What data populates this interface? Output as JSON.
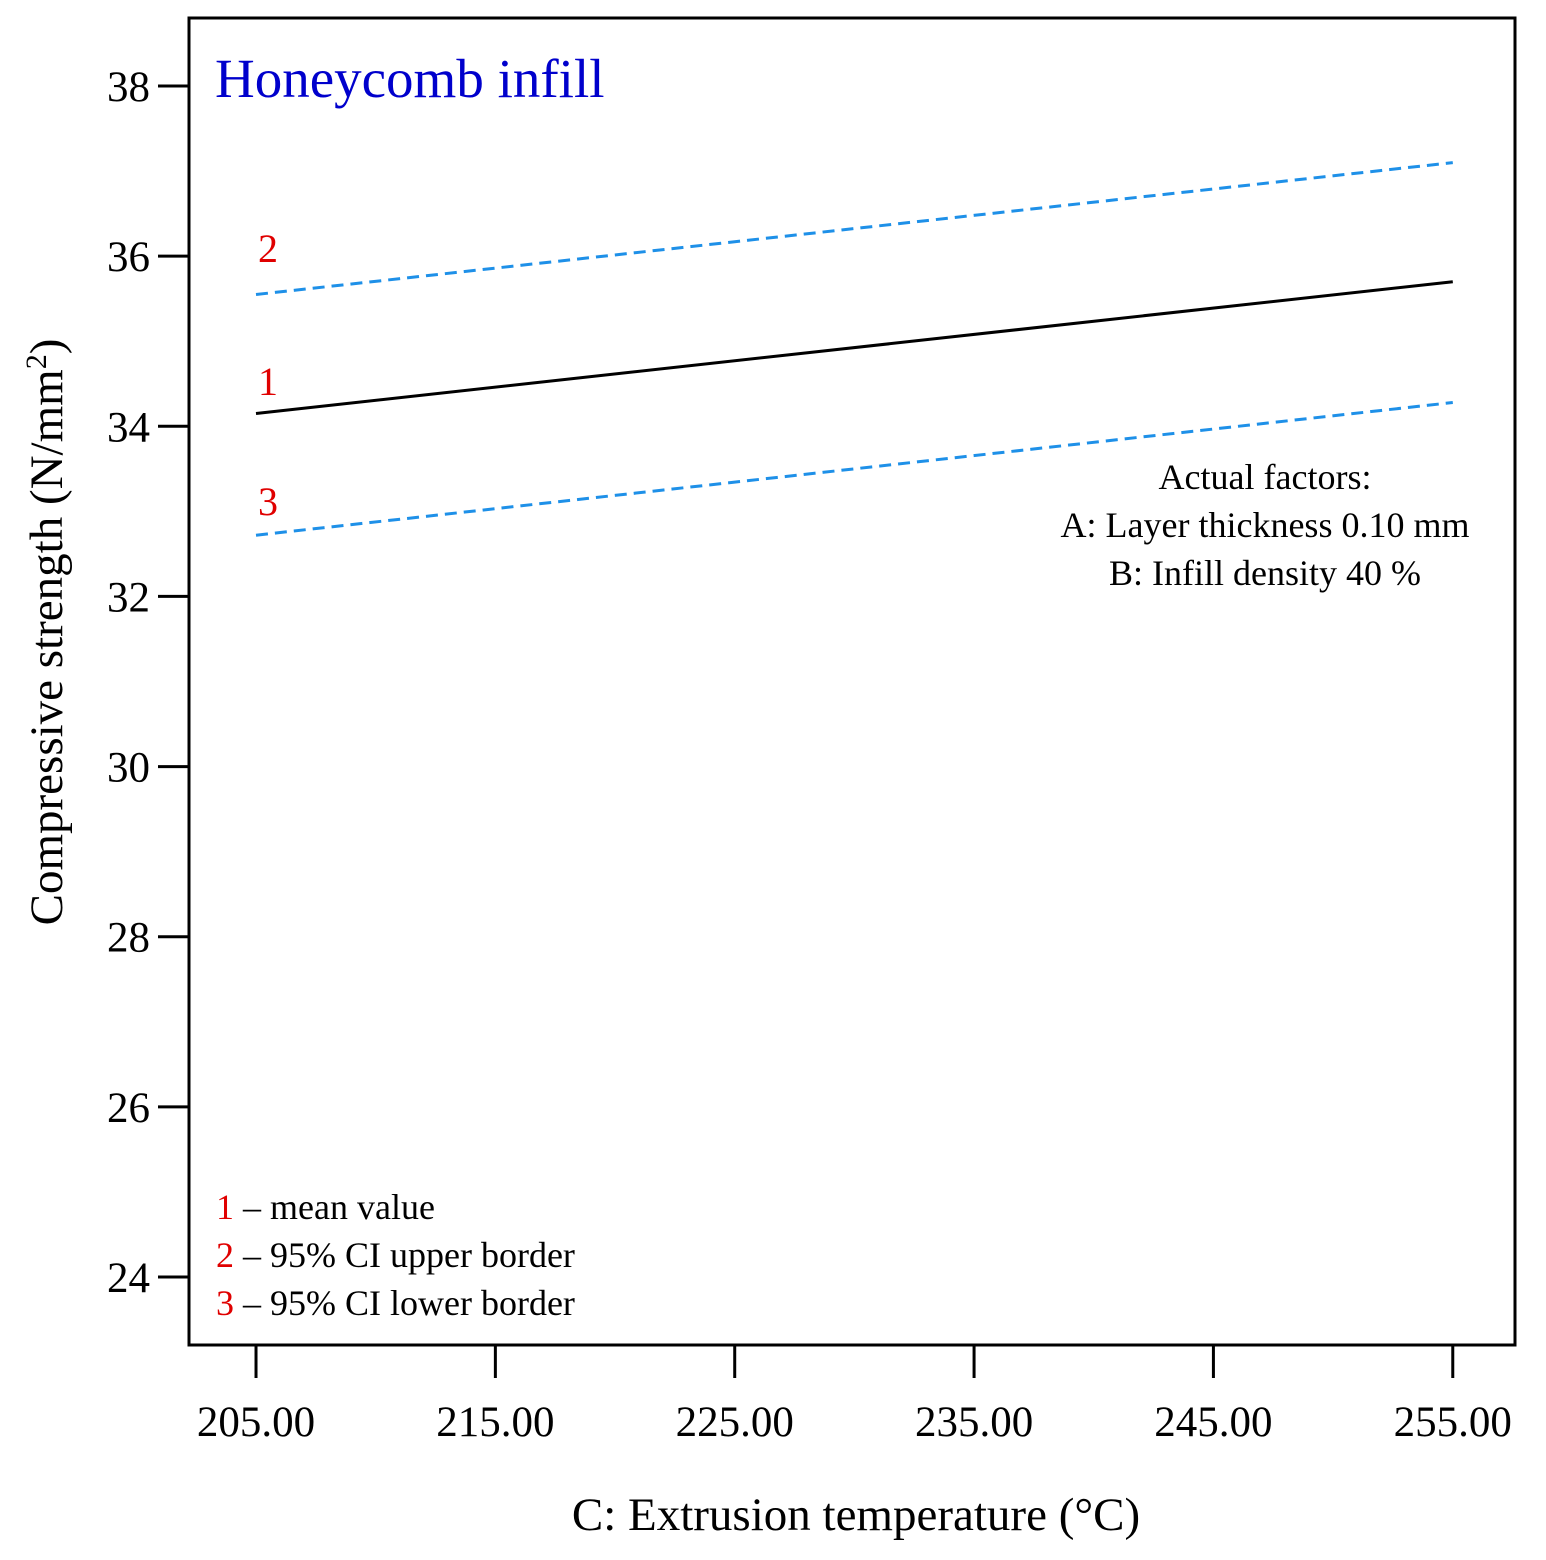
{
  "chart_data": {
    "type": "line",
    "title": "Honeycomb infill",
    "title_color": "#0000CC",
    "xlabel": "C: Extrusion temperature (°C)",
    "ylabel_main": "Compressive strength (N/mm",
    "ylabel_sup": "2",
    "ylabel_close": ")",
    "xlim": [
      202.2,
      257.6
    ],
    "ylim": [
      23.2,
      38.8
    ],
    "xticks": [
      205,
      215,
      225,
      235,
      245,
      255
    ],
    "xtick_labels": [
      "205.00",
      "215.00",
      "225.00",
      "235.00",
      "245.00",
      "255.00"
    ],
    "yticks": [
      24,
      26,
      28,
      30,
      32,
      34,
      36,
      38
    ],
    "ytick_labels": [
      "24",
      "26",
      "28",
      "30",
      "32",
      "34",
      "36",
      "38"
    ],
    "grid": false,
    "series": [
      {
        "id": "1",
        "x": [
          205,
          255
        ],
        "y": [
          34.15,
          35.7
        ],
        "color": "#000000",
        "style": "solid"
      },
      {
        "id": "2",
        "x": [
          205,
          255
        ],
        "y": [
          35.55,
          37.1
        ],
        "color": "#1E90E8",
        "style": "dashed"
      },
      {
        "id": "3",
        "x": [
          205,
          255
        ],
        "y": [
          32.72,
          34.28
        ],
        "color": "#1E90E8",
        "style": "dashed"
      }
    ],
    "series_label_color": "#E00000",
    "factors": {
      "heading": "Actual factors:",
      "lines": [
        "A: Layer thickness 0.10 mm",
        "B: Infill density 40 %"
      ]
    },
    "legend": {
      "position": "bottom-left",
      "entries": [
        {
          "num": "1",
          "text": " – mean value"
        },
        {
          "num": "2",
          "text": " – 95% CI upper border"
        },
        {
          "num": "3",
          "text": " – 95% CI lower border"
        }
      ]
    }
  }
}
